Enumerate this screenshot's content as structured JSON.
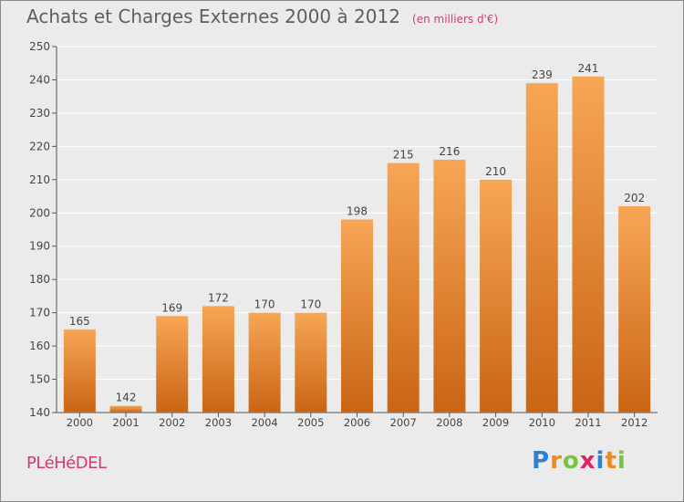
{
  "header": {
    "title": "Achats et Charges Externes 2000 à 2012",
    "unit": "(en milliers d'€)"
  },
  "footer": {
    "commune": "PLéHéDEL",
    "logo_text": "Proxiti",
    "logo_letters": [
      {
        "char": "P",
        "color": "#2f7fd4"
      },
      {
        "char": "r",
        "color": "#f08a1c"
      },
      {
        "char": "o",
        "color": "#7cc242"
      },
      {
        "char": "x",
        "color": "#e0245e"
      },
      {
        "char": "i",
        "color": "#2f7fd4"
      },
      {
        "char": "t",
        "color": "#f08a1c"
      },
      {
        "char": "i",
        "color": "#7cc242"
      }
    ]
  },
  "colors": {
    "bar_top": "#f7a655",
    "bar_bottom": "#c96515",
    "grid": "#ffffff",
    "axis": "#555555",
    "text": "#444444",
    "accent": "#d23b6e"
  },
  "chart_data": {
    "type": "bar",
    "title": "Achats et Charges Externes 2000 à 2012",
    "subtitle": "(en milliers d'€)",
    "categories": [
      "2000",
      "2001",
      "2002",
      "2003",
      "2004",
      "2005",
      "2006",
      "2007",
      "2008",
      "2009",
      "2010",
      "2011",
      "2012"
    ],
    "values": [
      165,
      142,
      169,
      172,
      170,
      170,
      198,
      215,
      216,
      210,
      239,
      241,
      202
    ],
    "ylim": [
      140,
      250
    ],
    "yticks": [
      140,
      150,
      160,
      170,
      180,
      190,
      200,
      210,
      220,
      230,
      240,
      250
    ],
    "grid": true,
    "data_labels": true
  }
}
